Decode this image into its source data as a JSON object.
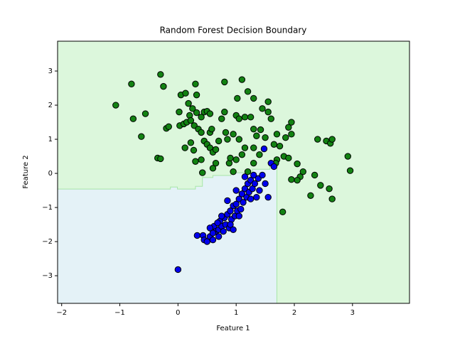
{
  "chart_data": {
    "type": "scatter",
    "title": "Random Forest Decision Boundary",
    "x_label": "Feature 1",
    "y_label": "Feature 2",
    "xlim": [
      -2.07,
      3.98
    ],
    "ylim": [
      -3.81,
      3.875
    ],
    "xticks": [
      {
        "value": -2,
        "label": "−2"
      },
      {
        "value": -1,
        "label": "−1"
      },
      0,
      1,
      2,
      3
    ],
    "yticks": [
      {
        "value": -3,
        "label": "−3"
      },
      {
        "value": -2,
        "label": "−2"
      },
      {
        "value": -1,
        "label": "−1"
      },
      0,
      1,
      2,
      3
    ],
    "grid": false,
    "background": "#dcf7dc",
    "regions": [
      {
        "color": "#e4f2f7",
        "edge": "#a8e6a8",
        "x": [
          -2.07,
          -0.13,
          -0.13,
          -0.01,
          -0.01,
          0.3,
          0.3,
          0.42,
          0.42,
          0.6,
          0.6,
          0.91,
          0.91,
          1.28,
          1.28,
          1.58,
          1.58,
          1.7,
          1.7,
          -2.07
        ],
        "y": [
          -0.46,
          -0.46,
          -0.4,
          -0.4,
          -0.46,
          -0.46,
          -0.38,
          -0.38,
          -0.12,
          -0.12,
          -0.06,
          -0.06,
          0.02,
          0.02,
          0.12,
          0.12,
          0.33,
          0.33,
          -3.81,
          -3.81
        ]
      }
    ],
    "series": [
      {
        "color": "#128212",
        "x": [
          -1.07,
          -0.8,
          -0.77,
          -0.63,
          -0.56,
          -0.3,
          -0.25,
          -0.35,
          -0.3,
          -0.2,
          -0.16,
          0.02,
          0.05,
          0.13,
          0.18,
          0.3,
          0.32,
          0.2,
          0.25,
          0.32,
          0.4,
          0.45,
          0.5,
          0.55,
          0.03,
          0.1,
          0.15,
          0.22,
          0.28,
          0.35,
          0.4,
          0.12,
          0.22,
          0.27,
          0.3,
          0.42,
          0.45,
          0.5,
          0.55,
          0.55,
          0.58,
          0.6,
          0.65,
          0.7,
          0.75,
          0.8,
          0.82,
          0.85,
          0.88,
          0.9,
          0.95,
          1.0,
          1.05,
          0.8,
          1.02,
          1.1,
          1.2,
          1.3,
          1.45,
          1.55,
          1.15,
          1.25,
          1.3,
          1.35,
          1.42,
          1.5,
          1.55,
          1.6,
          1.7,
          1.75,
          1.85,
          1.9,
          1.95,
          1.95,
          1.65,
          1.7,
          1.68,
          1.82,
          1.9,
          2.05,
          2.15,
          2.1,
          1.95,
          2.05,
          2.28,
          2.35,
          2.45,
          2.6,
          2.65,
          2.4,
          2.55,
          2.62,
          2.65,
          2.92,
          2.96,
          1.8,
          1.1,
          1.05,
          1.15,
          1.3,
          1.2,
          1.0,
          0.65,
          0.6,
          0.95,
          0.4,
          1.3,
          1.4
        ],
        "y": [
          2.0,
          2.62,
          1.6,
          1.08,
          1.75,
          2.9,
          2.55,
          0.45,
          0.43,
          1.32,
          1.37,
          1.8,
          2.3,
          2.35,
          2.05,
          2.62,
          2.3,
          1.7,
          1.9,
          1.78,
          1.65,
          1.8,
          1.82,
          1.75,
          1.4,
          1.45,
          1.5,
          1.55,
          1.4,
          1.3,
          1.2,
          0.75,
          0.9,
          0.68,
          0.35,
          0.02,
          0.95,
          0.85,
          0.75,
          1.2,
          1.3,
          0.62,
          0.7,
          0.95,
          1.6,
          1.8,
          1.2,
          1.0,
          0.3,
          0.45,
          1.15,
          1.7,
          1.6,
          2.68,
          2.2,
          2.75,
          2.4,
          2.2,
          1.9,
          2.1,
          1.65,
          1.65,
          1.3,
          1.1,
          1.28,
          1.05,
          1.8,
          1.6,
          1.15,
          0.8,
          1.05,
          1.35,
          1.5,
          1.15,
          0.85,
          0.4,
          0.3,
          0.5,
          0.45,
          0.28,
          0.05,
          -0.1,
          -0.18,
          -0.2,
          -0.65,
          -0.05,
          -0.35,
          -0.45,
          -0.75,
          1.0,
          0.95,
          0.88,
          1.0,
          0.5,
          0.08,
          -1.13,
          0.55,
          1.0,
          0.75,
          0.3,
          0.05,
          0.4,
          0.3,
          0.15,
          0.05,
          0.4,
          0.75,
          0.55
        ]
      },
      {
        "color": "#0000ee",
        "x": [
          0.0,
          0.33,
          0.43,
          0.45,
          0.5,
          0.55,
          0.6,
          0.62,
          0.65,
          0.7,
          0.72,
          0.75,
          0.78,
          0.8,
          0.82,
          0.85,
          0.88,
          0.9,
          0.92,
          0.95,
          0.98,
          1.0,
          1.02,
          1.05,
          1.08,
          1.1,
          1.12,
          1.15,
          1.18,
          1.2,
          1.22,
          1.25,
          1.28,
          1.3,
          1.32,
          1.35,
          1.38,
          1.4,
          1.45,
          1.5,
          1.55,
          1.6,
          1.65,
          1.48,
          0.55,
          0.68,
          0.85,
          0.9,
          1.05,
          0.95,
          0.75,
          1.0,
          1.15,
          1.25,
          0.6,
          0.7
        ],
        "y": [
          -2.82,
          -1.82,
          -1.82,
          -1.95,
          -2.0,
          -1.85,
          -1.95,
          -1.55,
          -1.7,
          -1.65,
          -1.4,
          -1.55,
          -1.7,
          -1.3,
          -1.5,
          -1.2,
          -1.6,
          -1.1,
          -1.35,
          -0.95,
          -1.25,
          -0.9,
          -1.1,
          -0.75,
          -1.05,
          -0.6,
          -0.85,
          -0.45,
          -0.7,
          -0.3,
          -0.55,
          -0.2,
          -0.45,
          -0.05,
          -0.3,
          -0.7,
          -0.15,
          -0.5,
          -0.05,
          -0.3,
          -0.7,
          0.3,
          0.2,
          0.72,
          -1.6,
          -1.45,
          -0.8,
          -1.5,
          -1.25,
          -1.65,
          -1.25,
          -0.5,
          -0.1,
          -0.75,
          -1.75,
          -1.85
        ]
      }
    ]
  }
}
